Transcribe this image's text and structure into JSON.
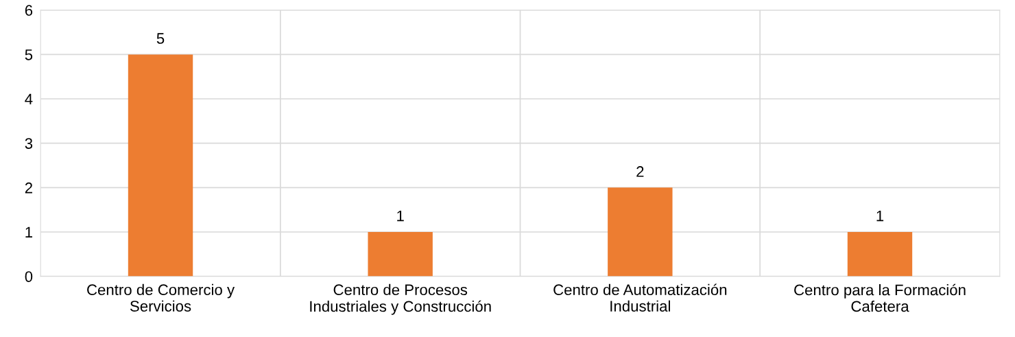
{
  "chart_data": {
    "type": "bar",
    "categories": [
      "Centro de Comercio y\nServicios",
      "Centro de Procesos\nIndustriales y Construcción",
      "Centro de Automatización\nIndustrial",
      "Centro para la Formación\nCafetera"
    ],
    "values": [
      5,
      1,
      2,
      1
    ],
    "color": "#ed7d31",
    "ylim": [
      0,
      6
    ],
    "yticks": [
      0,
      1,
      2,
      3,
      4,
      5,
      6
    ],
    "grid": true,
    "data_labels": true
  }
}
